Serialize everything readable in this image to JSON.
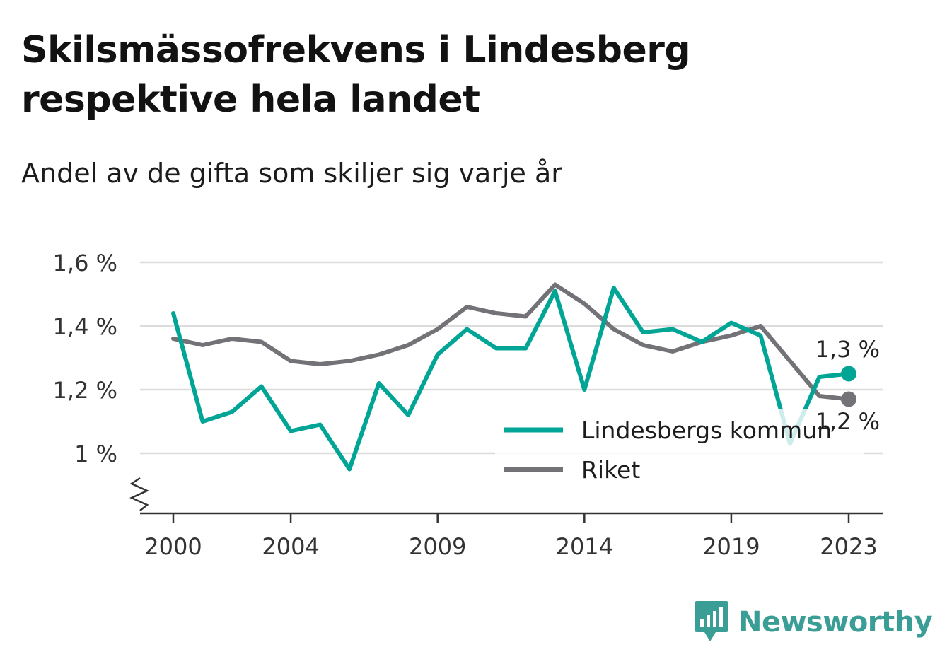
{
  "title": "Skilsmässofrekvens i Lindesberg respektive hela landet",
  "subtitle": "Andel av de gifta som skiljer sig varje år",
  "brand": {
    "name": "Newsworthy",
    "icon": "newsworthy-logo-icon",
    "color": "#3a9e96"
  },
  "chart_data": {
    "type": "line",
    "x_ticks": [
      "2000",
      "2004",
      "2009",
      "2014",
      "2019",
      "2023"
    ],
    "y_ticks": [
      "1 %",
      "1,2 %",
      "1,4 %",
      "1,6 %"
    ],
    "y_tick_values": [
      1.0,
      1.2,
      1.4,
      1.6
    ],
    "ylim": [
      0.8,
      1.6
    ],
    "xlim": [
      2000,
      2023
    ],
    "axis_break": true,
    "grid": true,
    "legend_position": "bottom-right",
    "x": [
      2000,
      2001,
      2002,
      2003,
      2004,
      2005,
      2006,
      2007,
      2008,
      2009,
      2010,
      2011,
      2012,
      2013,
      2014,
      2015,
      2016,
      2017,
      2018,
      2019,
      2020,
      2021,
      2022,
      2023
    ],
    "series": [
      {
        "name": "Lindesbergs kommun",
        "color": "#00a596",
        "values": [
          1.44,
          1.1,
          1.13,
          1.21,
          1.07,
          1.09,
          0.95,
          1.22,
          1.12,
          1.31,
          1.39,
          1.33,
          1.33,
          1.51,
          1.2,
          1.52,
          1.38,
          1.39,
          1.35,
          1.41,
          1.37,
          1.03,
          1.24,
          1.25
        ],
        "end_label": "1,3 %"
      },
      {
        "name": "Riket",
        "color": "#737277",
        "values": [
          1.36,
          1.34,
          1.36,
          1.35,
          1.29,
          1.28,
          1.29,
          1.31,
          1.34,
          1.39,
          1.46,
          1.44,
          1.43,
          1.53,
          1.47,
          1.39,
          1.34,
          1.32,
          1.35,
          1.37,
          1.4,
          1.29,
          1.18,
          1.17
        ],
        "end_label": "1,2 %"
      }
    ]
  }
}
